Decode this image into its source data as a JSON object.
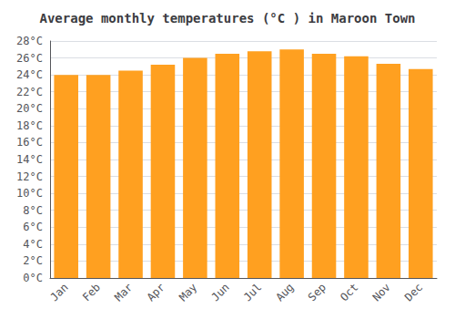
{
  "chart_data": {
    "type": "bar",
    "title": "Average monthly temperatures (°C ) in Maroon Town",
    "categories": [
      "Jan",
      "Feb",
      "Mar",
      "Apr",
      "May",
      "Jun",
      "Jul",
      "Aug",
      "Sep",
      "Oct",
      "Nov",
      "Dec"
    ],
    "values": [
      24.0,
      24.0,
      24.5,
      25.2,
      26.0,
      26.5,
      26.8,
      27.0,
      26.5,
      26.2,
      25.3,
      24.7
    ],
    "color": "#FFA020",
    "ylim": [
      0,
      28
    ],
    "yticks": [
      {
        "value": 0,
        "label": "0°C"
      },
      {
        "value": 2,
        "label": "2°C"
      },
      {
        "value": 4,
        "label": "4°C"
      },
      {
        "value": 6,
        "label": "6°C"
      },
      {
        "value": 8,
        "label": "8°C"
      },
      {
        "value": 10,
        "label": "10°C"
      },
      {
        "value": 12,
        "label": "12°C"
      },
      {
        "value": 14,
        "label": "14°C"
      },
      {
        "value": 16,
        "label": "16°C"
      },
      {
        "value": 18,
        "label": "18°C"
      },
      {
        "value": 20,
        "label": "20°C"
      },
      {
        "value": 22,
        "label": "22°C"
      },
      {
        "value": 24,
        "label": "24°C"
      },
      {
        "value": 26,
        "label": "26°C"
      },
      {
        "value": 28,
        "label": "28°C"
      }
    ],
    "grid": true
  }
}
